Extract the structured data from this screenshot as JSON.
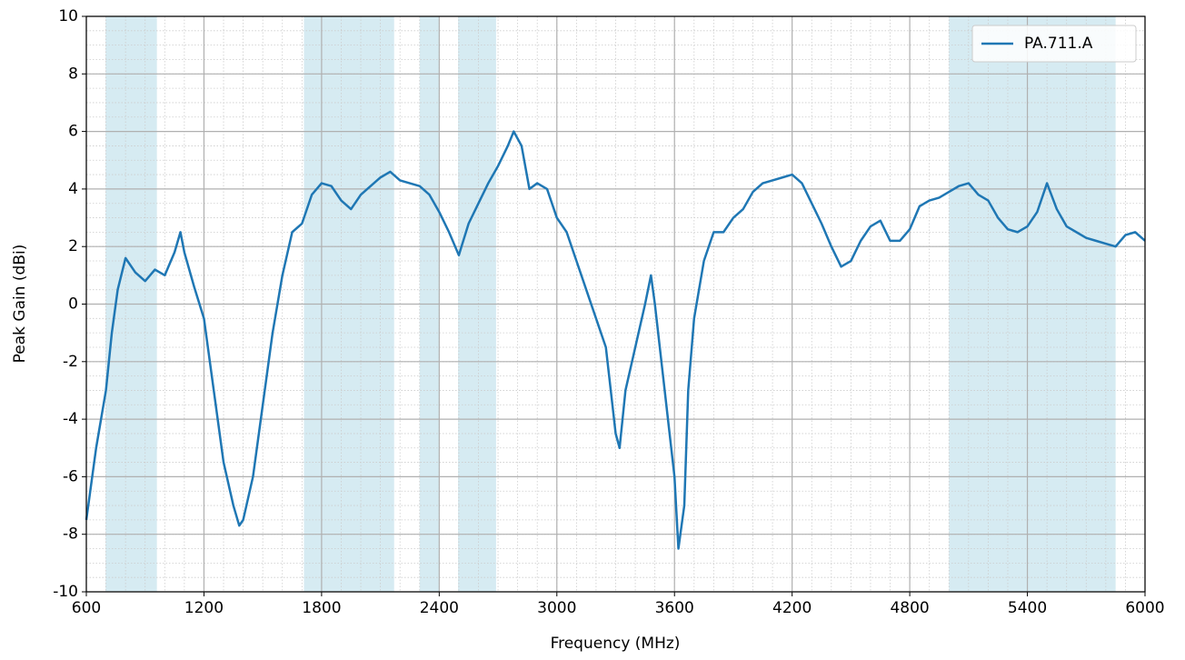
{
  "chart_data": {
    "type": "line",
    "xlabel": "Frequency (MHz)",
    "ylabel": "Peak Gain (dBi)",
    "x": [
      600,
      650,
      700,
      730,
      760,
      800,
      850,
      900,
      950,
      1000,
      1050,
      1080,
      1100,
      1150,
      1200,
      1250,
      1300,
      1350,
      1380,
      1400,
      1450,
      1500,
      1550,
      1600,
      1650,
      1700,
      1750,
      1800,
      1850,
      1900,
      1950,
      2000,
      2050,
      2100,
      2150,
      2200,
      2250,
      2300,
      2350,
      2400,
      2450,
      2500,
      2550,
      2600,
      2650,
      2700,
      2750,
      2780,
      2820,
      2860,
      2900,
      2950,
      3000,
      3050,
      3100,
      3150,
      3200,
      3250,
      3300,
      3320,
      3350,
      3400,
      3450,
      3480,
      3500,
      3550,
      3600,
      3620,
      3650,
      3670,
      3700,
      3750,
      3800,
      3850,
      3900,
      3950,
      4000,
      4050,
      4100,
      4150,
      4200,
      4250,
      4300,
      4350,
      4400,
      4450,
      4500,
      4550,
      4600,
      4650,
      4700,
      4750,
      4800,
      4850,
      4900,
      4950,
      5000,
      5050,
      5100,
      5150,
      5200,
      5250,
      5300,
      5350,
      5400,
      5450,
      5500,
      5550,
      5600,
      5650,
      5700,
      5750,
      5800,
      5850,
      5900,
      5950,
      6000
    ],
    "series": [
      {
        "name": "PA.711.A",
        "color": "#1f77b4",
        "values": [
          -7.5,
          -5,
          -3,
          -1,
          0.5,
          1.6,
          1.1,
          0.8,
          1.2,
          1.0,
          1.8,
          2.5,
          1.8,
          0.6,
          -0.5,
          -3,
          -5.5,
          -7.0,
          -7.7,
          -7.5,
          -6,
          -3.5,
          -1,
          1.0,
          2.5,
          2.8,
          3.8,
          4.2,
          4.1,
          3.6,
          3.3,
          3.8,
          4.1,
          4.4,
          4.6,
          4.3,
          4.2,
          4.1,
          3.8,
          3.2,
          2.5,
          1.7,
          2.8,
          3.5,
          4.2,
          4.8,
          5.5,
          6.0,
          5.5,
          4.0,
          4.2,
          4.0,
          3.0,
          2.5,
          1.5,
          0.5,
          -0.5,
          -1.5,
          -4.5,
          -5.0,
          -3,
          -1.5,
          0.0,
          1.0,
          0,
          -3,
          -6,
          -8.5,
          -7,
          -3,
          -0.5,
          1.5,
          2.5,
          2.5,
          3.0,
          3.3,
          3.9,
          4.2,
          4.3,
          4.4,
          4.5,
          4.2,
          3.5,
          2.8,
          2.0,
          1.3,
          1.5,
          2.2,
          2.7,
          2.9,
          2.2,
          2.2,
          2.6,
          3.4,
          3.6,
          3.7,
          3.9,
          4.1,
          4.2,
          3.8,
          3.6,
          3.0,
          2.6,
          2.5,
          2.7,
          3.2,
          4.2,
          3.3,
          2.7,
          2.5,
          2.3,
          2.2,
          2.1,
          2.0,
          2.4,
          2.5,
          2.2
        ]
      }
    ],
    "bands": [
      [
        698,
        960
      ],
      [
        1710,
        2170
      ],
      [
        2300,
        2400
      ],
      [
        2496,
        2690
      ],
      [
        5000,
        5850
      ]
    ],
    "band_color": "#add8e6",
    "xlim": [
      600,
      6000
    ],
    "xticks": [
      600,
      1200,
      1800,
      2400,
      3000,
      3600,
      4200,
      4800,
      5400,
      6000
    ],
    "ylim": [
      -10,
      10
    ],
    "yticks": [
      -10,
      -8,
      -6,
      -4,
      -2,
      0,
      2,
      4,
      6,
      8,
      10
    ],
    "x_minor_step": 100,
    "y_minor_step": 0.5,
    "grid": true,
    "legend": "upper right"
  }
}
